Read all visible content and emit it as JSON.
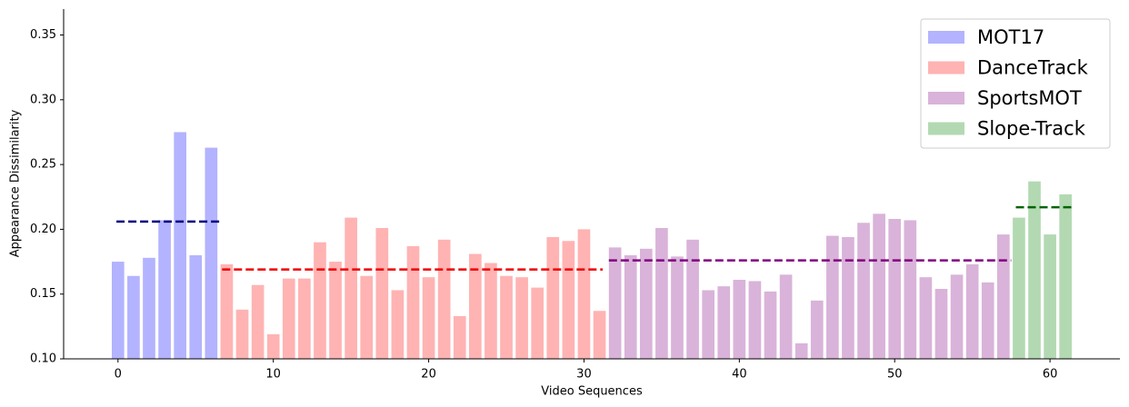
{
  "chart_data": {
    "type": "bar",
    "xlabel": "Video Sequences",
    "ylabel": "Appearance Dissimilarity",
    "xlim": [
      -3.5,
      64.5
    ],
    "xticks": [
      0,
      10,
      20,
      30,
      40,
      50,
      60
    ],
    "ylim": [
      0.1,
      0.37
    ],
    "yticks": [
      {
        "value": 0.1,
        "label": "0.10"
      },
      {
        "value": 0.15,
        "label": "0.15"
      },
      {
        "value": 0.2,
        "label": "0.20"
      },
      {
        "value": 0.25,
        "label": "0.25"
      },
      {
        "value": 0.3,
        "label": "0.30"
      },
      {
        "value": 0.35,
        "label": "0.35"
      }
    ],
    "bar_width": 0.8,
    "legend": "upper right",
    "series": [
      {
        "name": "MOT17",
        "color": "#b3b3ff",
        "x": [
          0,
          1,
          2,
          3,
          4,
          5,
          6
        ],
        "values": [
          0.175,
          0.164,
          0.178,
          0.207,
          0.275,
          0.18,
          0.263
        ]
      },
      {
        "name": "DanceTrack",
        "color": "#ffb3b3",
        "x": [
          7,
          8,
          9,
          10,
          11,
          12,
          13,
          14,
          15,
          16,
          17,
          18,
          19,
          20,
          21,
          22,
          23,
          24,
          25,
          26,
          27,
          28,
          29,
          30,
          31
        ],
        "values": [
          0.173,
          0.138,
          0.157,
          0.119,
          0.162,
          0.162,
          0.19,
          0.175,
          0.209,
          0.164,
          0.201,
          0.153,
          0.187,
          0.163,
          0.192,
          0.133,
          0.181,
          0.174,
          0.164,
          0.163,
          0.155,
          0.194,
          0.191,
          0.2,
          0.137
        ]
      },
      {
        "name": "SportsMOT",
        "color": "#d9b3d9",
        "x": [
          32,
          33,
          34,
          35,
          36,
          37,
          38,
          39,
          40,
          41,
          42,
          43,
          44,
          45,
          46,
          47,
          48,
          49,
          50,
          51,
          52,
          53,
          54,
          55,
          56,
          57
        ],
        "values": [
          0.186,
          0.18,
          0.185,
          0.201,
          0.179,
          0.192,
          0.153,
          0.156,
          0.161,
          0.16,
          0.152,
          0.165,
          0.112,
          0.145,
          0.195,
          0.194,
          0.205,
          0.212,
          0.208,
          0.207,
          0.163,
          0.154,
          0.165,
          0.173,
          0.159,
          0.196
        ]
      },
      {
        "name": "Slope-Track",
        "color": "#b3d9b3",
        "x": [
          58,
          59,
          60,
          61
        ],
        "values": [
          0.209,
          0.237,
          0.196,
          0.227
        ]
      }
    ],
    "mean_lines": [
      {
        "value": 0.206,
        "x_range": [
          -0.1,
          6.6
        ],
        "color": "#000080"
      },
      {
        "value": 0.169,
        "x_range": [
          6.7,
          31.2
        ],
        "color": "#ee0000"
      },
      {
        "value": 0.176,
        "x_range": [
          31.6,
          57.5
        ],
        "color": "#800080"
      },
      {
        "value": 0.217,
        "x_range": [
          57.8,
          61.6
        ],
        "color": "#006400"
      }
    ]
  }
}
